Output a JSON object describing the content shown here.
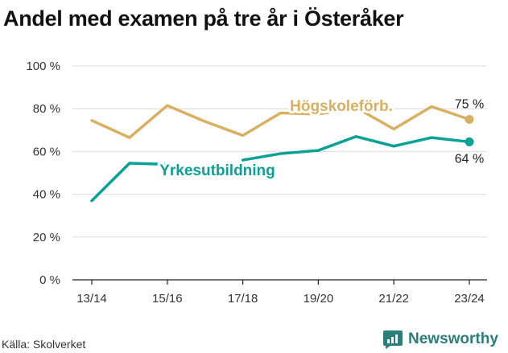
{
  "title": "Andel med examen på tre år i Österåker",
  "source": "Källa: Skolverket",
  "brand": "Newsworthy",
  "chart_data": {
    "type": "line",
    "x": [
      "13/14",
      "14/15",
      "15/16",
      "16/17",
      "17/18",
      "18/19",
      "19/20",
      "20/21",
      "21/22",
      "22/23",
      "23/24"
    ],
    "x_tick_labels": [
      "13/14",
      "15/16",
      "17/18",
      "19/20",
      "21/22",
      "23/24"
    ],
    "y_ticks": [
      "0 %",
      "20 %",
      "40 %",
      "60 %",
      "80 %",
      "100 %"
    ],
    "ylim": [
      0,
      100
    ],
    "grid": true,
    "series": [
      {
        "name": "Högskoleförb.",
        "color": "#d8b062",
        "values": [
          74.5,
          66.5,
          81.5,
          74,
          67.5,
          78,
          77.5,
          80.5,
          70.5,
          81,
          75
        ],
        "end_label": "75 %"
      },
      {
        "name": "Yrkesutbildning",
        "color": "#0aa195",
        "values": [
          37,
          54.5,
          54,
          null,
          56,
          59,
          60.5,
          67,
          62.5,
          66.5,
          64.5
        ],
        "end_label": "64 %"
      }
    ]
  }
}
